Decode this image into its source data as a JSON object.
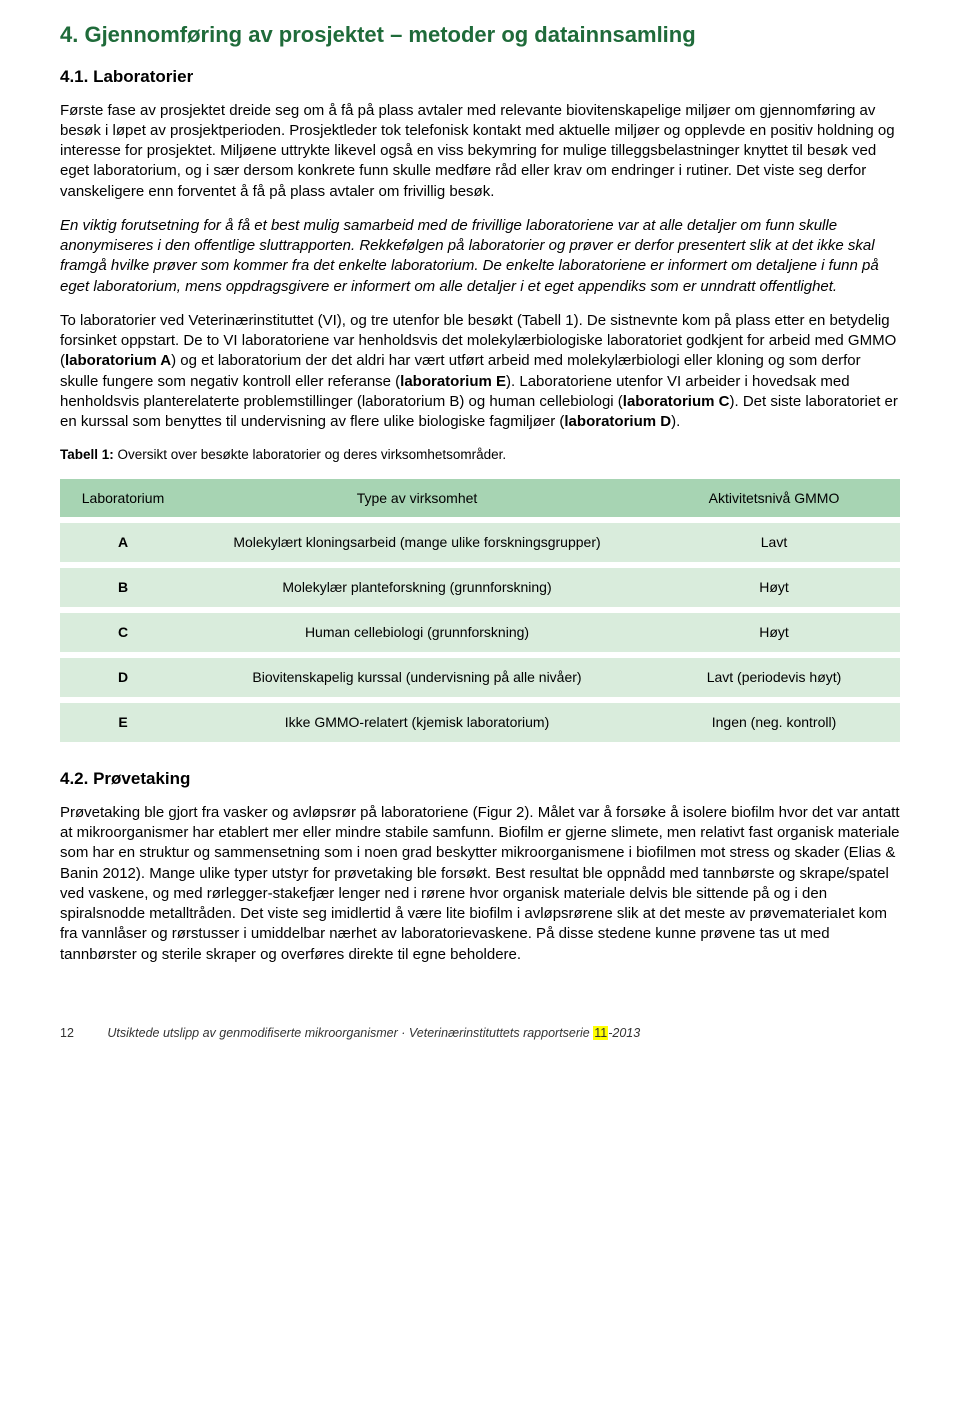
{
  "colors": {
    "heading1": "#1f6b3a",
    "heading2": "#000000",
    "text": "#000000",
    "table_header_bg": "#a7d4b3",
    "table_row_bg": "#d9ecdc",
    "highlight_bg": "#ffff00",
    "page_bg": "#ffffff"
  },
  "headings": {
    "h1": "4. Gjennomføring av prosjektet – metoder og datainnsamling",
    "h2a": "4.1. Laboratorier",
    "h2b": "4.2. Prøvetaking"
  },
  "paragraphs": {
    "p1": "Første fase av prosjektet dreide seg om å få på plass avtaler med relevante biovitenskapelige miljøer om gjennomføring av besøk i løpet av prosjektperioden. Prosjektleder tok telefonisk kontakt med aktuelle miljøer og opplevde en positiv holdning og interesse for prosjektet. Miljøene uttrykte likevel også en viss bekymring for mulige tilleggsbelastninger knyttet til besøk ved eget laboratorium, og i sær dersom konkrete funn skulle medføre råd eller krav om endringer i rutiner. Det viste seg derfor vanskeligere enn forventet å få på plass avtaler om frivillig besøk.",
    "p2": "En viktig forutsetning for å få et best mulig samarbeid med de frivillige laboratoriene var at alle detaljer om funn skulle anonymiseres i den offentlige sluttrapporten. Rekkefølgen på laboratorier og prøver er derfor presentert slik at det ikke skal framgå hvilke prøver som kommer fra det enkelte laboratorium. De enkelte laboratoriene er informert om detaljene i funn på eget laboratorium, mens oppdragsgivere er informert om alle detaljer i et eget appendiks som er unndratt offentlighet.",
    "p3_pre": "To laboratorier ved Veterinærinstituttet (VI), og tre utenfor ble besøkt (Tabell 1). De sistnevnte kom på plass etter en betydelig forsinket oppstart. De to VI laboratoriene var henholdsvis det molekylærbiologiske laboratoriet godkjent for arbeid med GMMO (",
    "p3_labA": "laboratorium A",
    "p3_mid1": ") og et laboratorium der det aldri har vært utført arbeid med molekylærbiologi eller kloning og som derfor skulle fungere som negativ kontroll eller referanse (",
    "p3_labE": "laboratorium E",
    "p3_mid2": "). Laboratoriene utenfor VI arbeider i hovedsak med henholdsvis planterelaterte problemstillinger (laboratorium B) og human cellebiologi (",
    "p3_labC": "laboratorium C",
    "p3_mid3": "). Det siste laboratoriet er en kurssal som benyttes til undervisning av flere ulike biologiske fagmiljøer (",
    "p3_labD": "laboratorium D",
    "p3_end": ").",
    "p4": "Prøvetaking ble gjort fra vasker og avløpsrør på laboratoriene (Figur 2). Målet var å forsøke å isolere biofilm hvor det var antatt at mikroorganismer har etablert mer eller mindre stabile samfunn. Biofilm er gjerne slimete, men relativt fast organisk materiale som har en struktur og sammensetning som i noen grad beskytter mikroorganismene i biofilmen mot stress og skader (Elias & Banin 2012). Mange ulike typer utstyr for prøvetaking ble forsøkt. Best resultat ble oppnådd med tannbørste og skrape/spatel ved vaskene, og med rørlegger-stakefjær lenger ned i rørene hvor organisk materiale delvis ble sittende på og i den spiralsnodde metalltråden. Det viste seg imidlertid å være lite biofilm i avløpsrørene slik at det meste av prøvemateriaIet kom fra vannlåser og rørstusser i umiddelbar nærhet av laboratorievaskene. På disse stedene kunne prøvene tas ut med tannbørster og sterile skraper og overføres direkte til egne beholdere."
  },
  "table": {
    "caption_bold": "Tabell 1:",
    "caption_rest": " Oversikt over besøkte laboratorier og deres virksomhetsområder.",
    "columns": [
      "Laboratorium",
      "Type av virksomhet",
      "Aktivitetsnivå GMMO"
    ],
    "rows": [
      [
        "A",
        "Molekylært kloningsarbeid (mange ulike forskningsgrupper)",
        "Lavt"
      ],
      [
        "B",
        "Molekylær planteforskning (grunnforskning)",
        "Høyt"
      ],
      [
        "C",
        "Human cellebiologi (grunnforskning)",
        "Høyt"
      ],
      [
        "D",
        "Biovitenskapelig kurssal (undervisning på alle nivåer)",
        "Lavt (periodevis høyt)"
      ],
      [
        "E",
        "Ikke GMMO-relatert (kjemisk laboratorium)",
        "Ingen (neg. kontroll)"
      ]
    ]
  },
  "footer": {
    "page": "12",
    "text_pre": "Utsiktede utslipp av genmodifiserte mikroorganismer · Veterinærinstituttets rapportserie ",
    "highlight": "11",
    "text_post": "-2013"
  }
}
